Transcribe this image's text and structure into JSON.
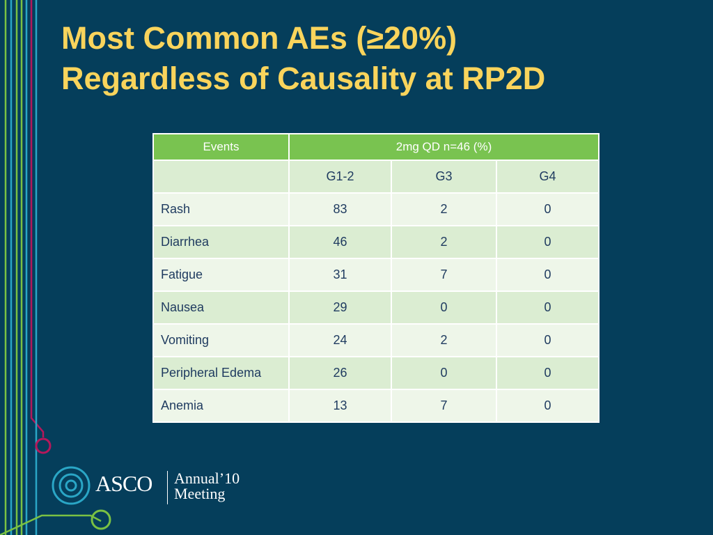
{
  "slide": {
    "title_line1": "Most Common AEs (≥20%)",
    "title_line2": "Regardless of Causality at RP2D"
  },
  "table": {
    "header": {
      "events": "Events",
      "group": "2mg QD n=46 (%)"
    },
    "subheader": [
      "G1-2",
      "G3",
      "G4"
    ],
    "rows": [
      {
        "event": "Rash",
        "g12": "83",
        "g3": "2",
        "g4": "0"
      },
      {
        "event": "Diarrhea",
        "g12": "46",
        "g3": "2",
        "g4": "0"
      },
      {
        "event": "Fatigue",
        "g12": "31",
        "g3": "7",
        "g4": "0"
      },
      {
        "event": "Nausea",
        "g12": "29",
        "g3": "0",
        "g4": "0"
      },
      {
        "event": "Vomiting",
        "g12": "24",
        "g3": "2",
        "g4": "0"
      },
      {
        "event": "Peripheral Edema",
        "g12": "26",
        "g3": "0",
        "g4": "0"
      },
      {
        "event": "Anemia",
        "g12": "13",
        "g3": "7",
        "g4": "0"
      }
    ]
  },
  "logo": {
    "org": "ASCO",
    "meeting_line1": "Annual’10",
    "meeting_line2": "Meeting"
  },
  "colors": {
    "background": "#053e5b",
    "title": "#f9d45c",
    "header_green": "#79c350",
    "row_light": "#eef6e9",
    "row_dark": "#dbedd2"
  }
}
